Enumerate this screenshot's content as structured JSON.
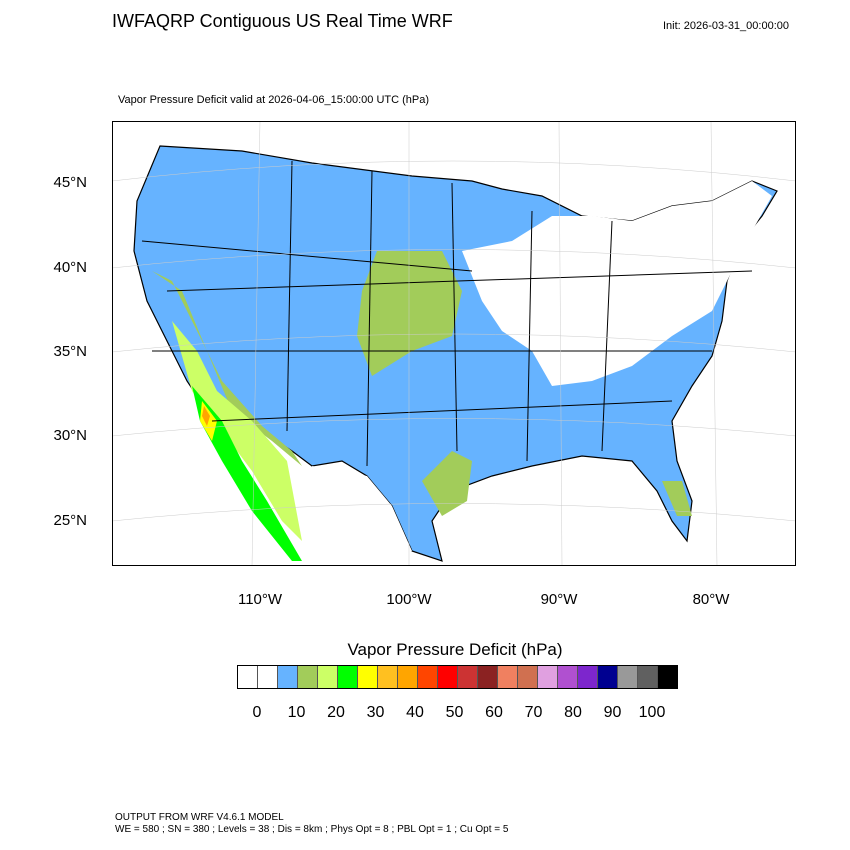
{
  "header": {
    "title": "IWFAQRP Contiguous US Real Time WRF",
    "init": "Init: 2026-03-31_00:00:00",
    "subtitle": "Vapor Pressure Deficit valid at 2026-04-06_15:00:00 UTC   (hPa)"
  },
  "map": {
    "lat_labels": [
      "45°N",
      "40°N",
      "35°N",
      "30°N",
      "25°N"
    ],
    "lon_labels": [
      "110°W",
      "100°W",
      "90°W",
      "80°W"
    ],
    "colors": {
      "land_low": "#66b3ff",
      "mid": "#a2cc5a",
      "light_green": "#ccff66",
      "green": "#00ff00",
      "yellow": "#ffff00",
      "orange": "#ffa500"
    }
  },
  "colorbar": {
    "title": "Vapor Pressure Deficit  (hPa)",
    "labels": [
      "0",
      "10",
      "20",
      "30",
      "40",
      "50",
      "60",
      "70",
      "80",
      "90",
      "100"
    ],
    "colors": [
      "#ffffff",
      "#ffffff",
      "#66b3ff",
      "#a2cc5a",
      "#ccff66",
      "#00ff00",
      "#ffff00",
      "#ffc020",
      "#ffa500",
      "#ff4500",
      "#ff0000",
      "#cc3333",
      "#8b2222",
      "#f08060",
      "#d07050",
      "#e0a0e0",
      "#b050d0",
      "#7d26cd",
      "#000090",
      "#999999",
      "#606060",
      "#000000"
    ]
  },
  "footer": {
    "line1": "OUTPUT FROM WRF V4.6.1 MODEL",
    "line2": "WE = 580 ; SN = 380 ; Levels = 38 ; Dis = 8km ; Phys Opt = 8 ; PBL Opt = 1 ; Cu Opt = 5"
  }
}
